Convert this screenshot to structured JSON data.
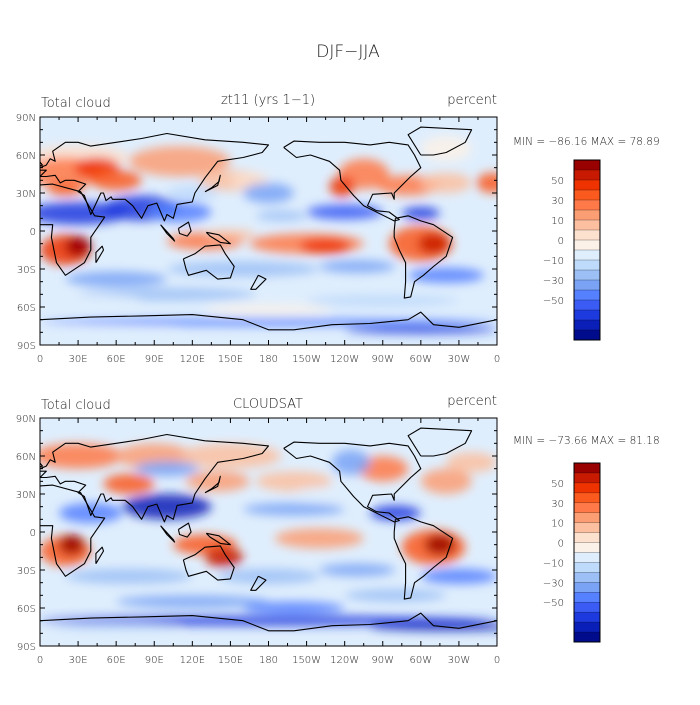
{
  "title": "DJF−JJA",
  "panels": [
    {
      "left_label": "Total cloud",
      "center_label": "zt11 (yrs 1−1)",
      "right_label": "percent",
      "stats": "MIN = −86.16 MAX =  78.89"
    },
    {
      "left_label": "Total cloud",
      "center_label": "CLOUDSAT",
      "right_label": "percent",
      "stats": "MIN = −73.66 MAX =  81.18"
    }
  ],
  "chart_data": {
    "type": "heatmap",
    "variable": "Total cloud",
    "units": "percent",
    "x_ticks": [
      "0",
      "30E",
      "60E",
      "90E",
      "120E",
      "150E",
      "180",
      "150W",
      "120W",
      "90W",
      "60W",
      "30W",
      "0"
    ],
    "y_ticks": [
      "90N",
      "60N",
      "30N",
      "0",
      "30S",
      "60S",
      "90S"
    ],
    "xlim": [
      0,
      360
    ],
    "ylim": [
      -90,
      90
    ],
    "colorbar_labels": [
      "50",
      "30",
      "10",
      "0",
      "−10",
      "−30",
      "−50"
    ],
    "colorbar_colors": [
      "#990000",
      "#c81a00",
      "#ee3300",
      "#fa5a1e",
      "#ff7a48",
      "#fb9e74",
      "#fcbfa0",
      "#fde1cf",
      "#fbf1e8",
      "#dfeefd",
      "#bfdbfb",
      "#9cbff6",
      "#7aa3f6",
      "#5580ff",
      "#3a5cf4",
      "#1d3ade",
      "#0a1fb7",
      "#000c8b"
    ],
    "series": [
      {
        "name": "zt11 (yrs 1-1)",
        "min": -86.16,
        "max": 78.89
      },
      {
        "name": "CLOUDSAT",
        "min": -73.66,
        "max": 81.18
      }
    ]
  }
}
